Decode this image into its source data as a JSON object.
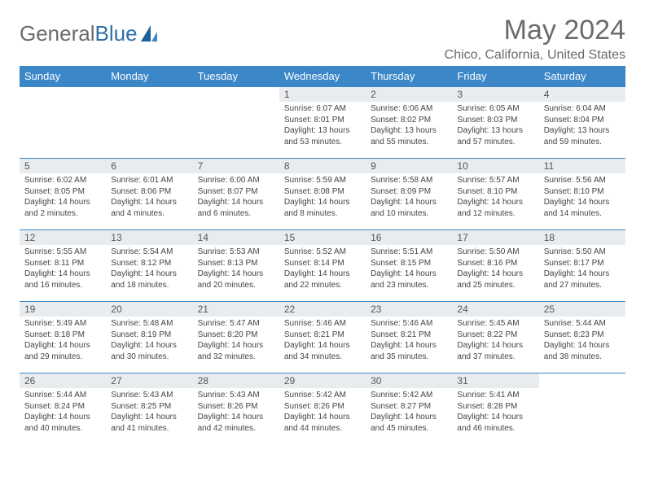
{
  "brand": {
    "name_a": "General",
    "name_b": "Blue"
  },
  "title": "May 2024",
  "location": "Chico, California, United States",
  "colors": {
    "header_bg": "#3b87c8",
    "header_text": "#ffffff",
    "row_border": "#3b87c8",
    "daynum_bg": "#e8ecef",
    "body_text": "#444444",
    "title_text": "#6b6b6b"
  },
  "layout": {
    "columns": 7,
    "rows": 5,
    "type": "calendar-table",
    "cell_font_size_pt": 7.5,
    "header_font_size_pt": 10
  },
  "weekdays": [
    "Sunday",
    "Monday",
    "Tuesday",
    "Wednesday",
    "Thursday",
    "Friday",
    "Saturday"
  ],
  "labels": {
    "sunrise": "Sunrise:",
    "sunset": "Sunset:",
    "daylight": "Daylight:"
  },
  "weeks": [
    [
      {
        "empty": true
      },
      {
        "empty": true
      },
      {
        "empty": true
      },
      {
        "day": "1",
        "sunrise": "6:07 AM",
        "sunset": "8:01 PM",
        "daylight": "13 hours and 53 minutes."
      },
      {
        "day": "2",
        "sunrise": "6:06 AM",
        "sunset": "8:02 PM",
        "daylight": "13 hours and 55 minutes."
      },
      {
        "day": "3",
        "sunrise": "6:05 AM",
        "sunset": "8:03 PM",
        "daylight": "13 hours and 57 minutes."
      },
      {
        "day": "4",
        "sunrise": "6:04 AM",
        "sunset": "8:04 PM",
        "daylight": "13 hours and 59 minutes."
      }
    ],
    [
      {
        "day": "5",
        "sunrise": "6:02 AM",
        "sunset": "8:05 PM",
        "daylight": "14 hours and 2 minutes."
      },
      {
        "day": "6",
        "sunrise": "6:01 AM",
        "sunset": "8:06 PM",
        "daylight": "14 hours and 4 minutes."
      },
      {
        "day": "7",
        "sunrise": "6:00 AM",
        "sunset": "8:07 PM",
        "daylight": "14 hours and 6 minutes."
      },
      {
        "day": "8",
        "sunrise": "5:59 AM",
        "sunset": "8:08 PM",
        "daylight": "14 hours and 8 minutes."
      },
      {
        "day": "9",
        "sunrise": "5:58 AM",
        "sunset": "8:09 PM",
        "daylight": "14 hours and 10 minutes."
      },
      {
        "day": "10",
        "sunrise": "5:57 AM",
        "sunset": "8:10 PM",
        "daylight": "14 hours and 12 minutes."
      },
      {
        "day": "11",
        "sunrise": "5:56 AM",
        "sunset": "8:10 PM",
        "daylight": "14 hours and 14 minutes."
      }
    ],
    [
      {
        "day": "12",
        "sunrise": "5:55 AM",
        "sunset": "8:11 PM",
        "daylight": "14 hours and 16 minutes."
      },
      {
        "day": "13",
        "sunrise": "5:54 AM",
        "sunset": "8:12 PM",
        "daylight": "14 hours and 18 minutes."
      },
      {
        "day": "14",
        "sunrise": "5:53 AM",
        "sunset": "8:13 PM",
        "daylight": "14 hours and 20 minutes."
      },
      {
        "day": "15",
        "sunrise": "5:52 AM",
        "sunset": "8:14 PM",
        "daylight": "14 hours and 22 minutes."
      },
      {
        "day": "16",
        "sunrise": "5:51 AM",
        "sunset": "8:15 PM",
        "daylight": "14 hours and 23 minutes."
      },
      {
        "day": "17",
        "sunrise": "5:50 AM",
        "sunset": "8:16 PM",
        "daylight": "14 hours and 25 minutes."
      },
      {
        "day": "18",
        "sunrise": "5:50 AM",
        "sunset": "8:17 PM",
        "daylight": "14 hours and 27 minutes."
      }
    ],
    [
      {
        "day": "19",
        "sunrise": "5:49 AM",
        "sunset": "8:18 PM",
        "daylight": "14 hours and 29 minutes."
      },
      {
        "day": "20",
        "sunrise": "5:48 AM",
        "sunset": "8:19 PM",
        "daylight": "14 hours and 30 minutes."
      },
      {
        "day": "21",
        "sunrise": "5:47 AM",
        "sunset": "8:20 PM",
        "daylight": "14 hours and 32 minutes."
      },
      {
        "day": "22",
        "sunrise": "5:46 AM",
        "sunset": "8:21 PM",
        "daylight": "14 hours and 34 minutes."
      },
      {
        "day": "23",
        "sunrise": "5:46 AM",
        "sunset": "8:21 PM",
        "daylight": "14 hours and 35 minutes."
      },
      {
        "day": "24",
        "sunrise": "5:45 AM",
        "sunset": "8:22 PM",
        "daylight": "14 hours and 37 minutes."
      },
      {
        "day": "25",
        "sunrise": "5:44 AM",
        "sunset": "8:23 PM",
        "daylight": "14 hours and 38 minutes."
      }
    ],
    [
      {
        "day": "26",
        "sunrise": "5:44 AM",
        "sunset": "8:24 PM",
        "daylight": "14 hours and 40 minutes."
      },
      {
        "day": "27",
        "sunrise": "5:43 AM",
        "sunset": "8:25 PM",
        "daylight": "14 hours and 41 minutes."
      },
      {
        "day": "28",
        "sunrise": "5:43 AM",
        "sunset": "8:26 PM",
        "daylight": "14 hours and 42 minutes."
      },
      {
        "day": "29",
        "sunrise": "5:42 AM",
        "sunset": "8:26 PM",
        "daylight": "14 hours and 44 minutes."
      },
      {
        "day": "30",
        "sunrise": "5:42 AM",
        "sunset": "8:27 PM",
        "daylight": "14 hours and 45 minutes."
      },
      {
        "day": "31",
        "sunrise": "5:41 AM",
        "sunset": "8:28 PM",
        "daylight": "14 hours and 46 minutes."
      },
      {
        "empty": true
      }
    ]
  ]
}
